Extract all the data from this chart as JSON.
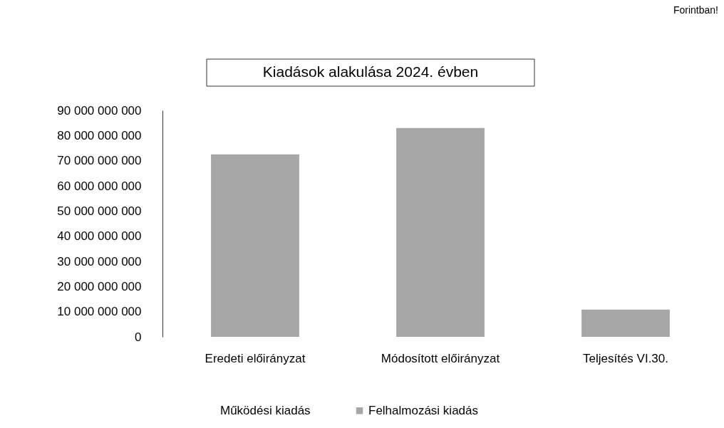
{
  "chart_data": {
    "type": "bar",
    "title": "Kiadások alakulása 2024. évben",
    "categories": [
      "Eredeti előirányzat",
      "Módosított előirányzat",
      "Teljesítés VI.30."
    ],
    "series": [
      {
        "name": "Működési kiadás",
        "values": [
          null,
          null,
          null
        ]
      },
      {
        "name": "Felhalmozási kiadás",
        "color": "#a6a6a6",
        "values": [
          72500000000,
          83000000000,
          10800000000
        ]
      }
    ],
    "ylim": [
      0,
      90000000000
    ],
    "yticks": [
      {
        "value": 0,
        "label": "0"
      },
      {
        "value": 10000000000,
        "label": "10 000 000 000"
      },
      {
        "value": 20000000000,
        "label": "20 000 000 000"
      },
      {
        "value": 30000000000,
        "label": "30 000 000 000"
      },
      {
        "value": 40000000000,
        "label": "40 000 000 000"
      },
      {
        "value": 50000000000,
        "label": "50 000 000 000"
      },
      {
        "value": 60000000000,
        "label": "60 000 000 000"
      },
      {
        "value": 70000000000,
        "label": "70 000 000 000"
      },
      {
        "value": 80000000000,
        "label": "80 000 000 000"
      },
      {
        "value": 90000000000,
        "label": "90 000 000 000"
      }
    ],
    "grid": false,
    "legend": "bottom",
    "annotations": [
      "Forintban!"
    ]
  }
}
